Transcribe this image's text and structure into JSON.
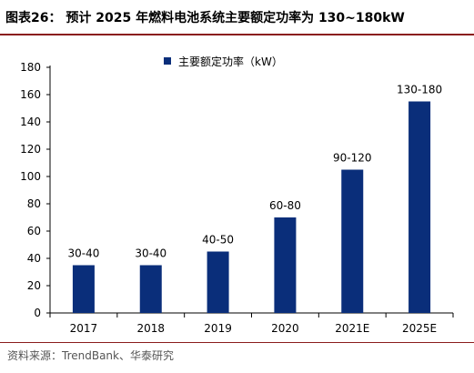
{
  "header": {
    "figure_label": "图表26：",
    "title": "预计 2025 年燃料电池系统主要额定功率为 130~180kW"
  },
  "footer": {
    "source": "资料来源：TrendBank、华泰研究"
  },
  "colors": {
    "bar": "#0a2e7a",
    "rule": "#8a1c1c"
  },
  "chart_data": {
    "type": "bar",
    "categories": [
      "2017",
      "2018",
      "2019",
      "2020",
      "2021E",
      "2025E"
    ],
    "series": [
      {
        "name": "主要额定功率（kW）",
        "values": [
          35,
          35,
          45,
          70,
          105,
          155
        ],
        "data_labels": [
          "30-40",
          "30-40",
          "40-50",
          "60-80",
          "90-120",
          "130-180"
        ]
      }
    ],
    "y_ticks": [
      0,
      20,
      40,
      60,
      80,
      100,
      120,
      140,
      160,
      180
    ],
    "ylim": [
      0,
      180
    ],
    "legend_position": "top-center",
    "grid": false
  }
}
